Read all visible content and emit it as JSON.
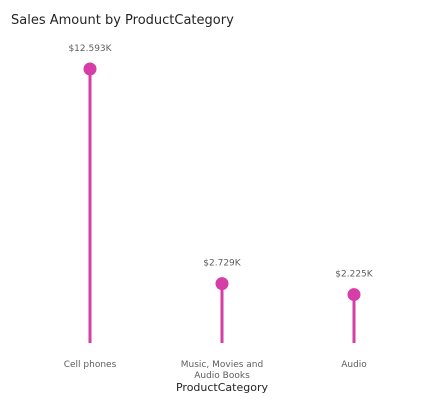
{
  "chart_data": {
    "type": "lollipop",
    "title": "Sales Amount by ProductCategory",
    "xlabel": "ProductCategory",
    "ylabel": "",
    "categories": [
      "Cell phones",
      "Music, Movies and Audio Books",
      "Audio"
    ],
    "category_lines": [
      [
        "Cell phones"
      ],
      [
        "Music, Movies and",
        "Audio Books"
      ],
      [
        "Audio"
      ]
    ],
    "values": [
      12593,
      2729,
      2225
    ],
    "data_labels": [
      "$12.593K",
      "$2.729K",
      "$2.225K"
    ],
    "ylim": [
      0,
      12593
    ],
    "grid": false,
    "legend": "none",
    "color": "#d63da6"
  }
}
